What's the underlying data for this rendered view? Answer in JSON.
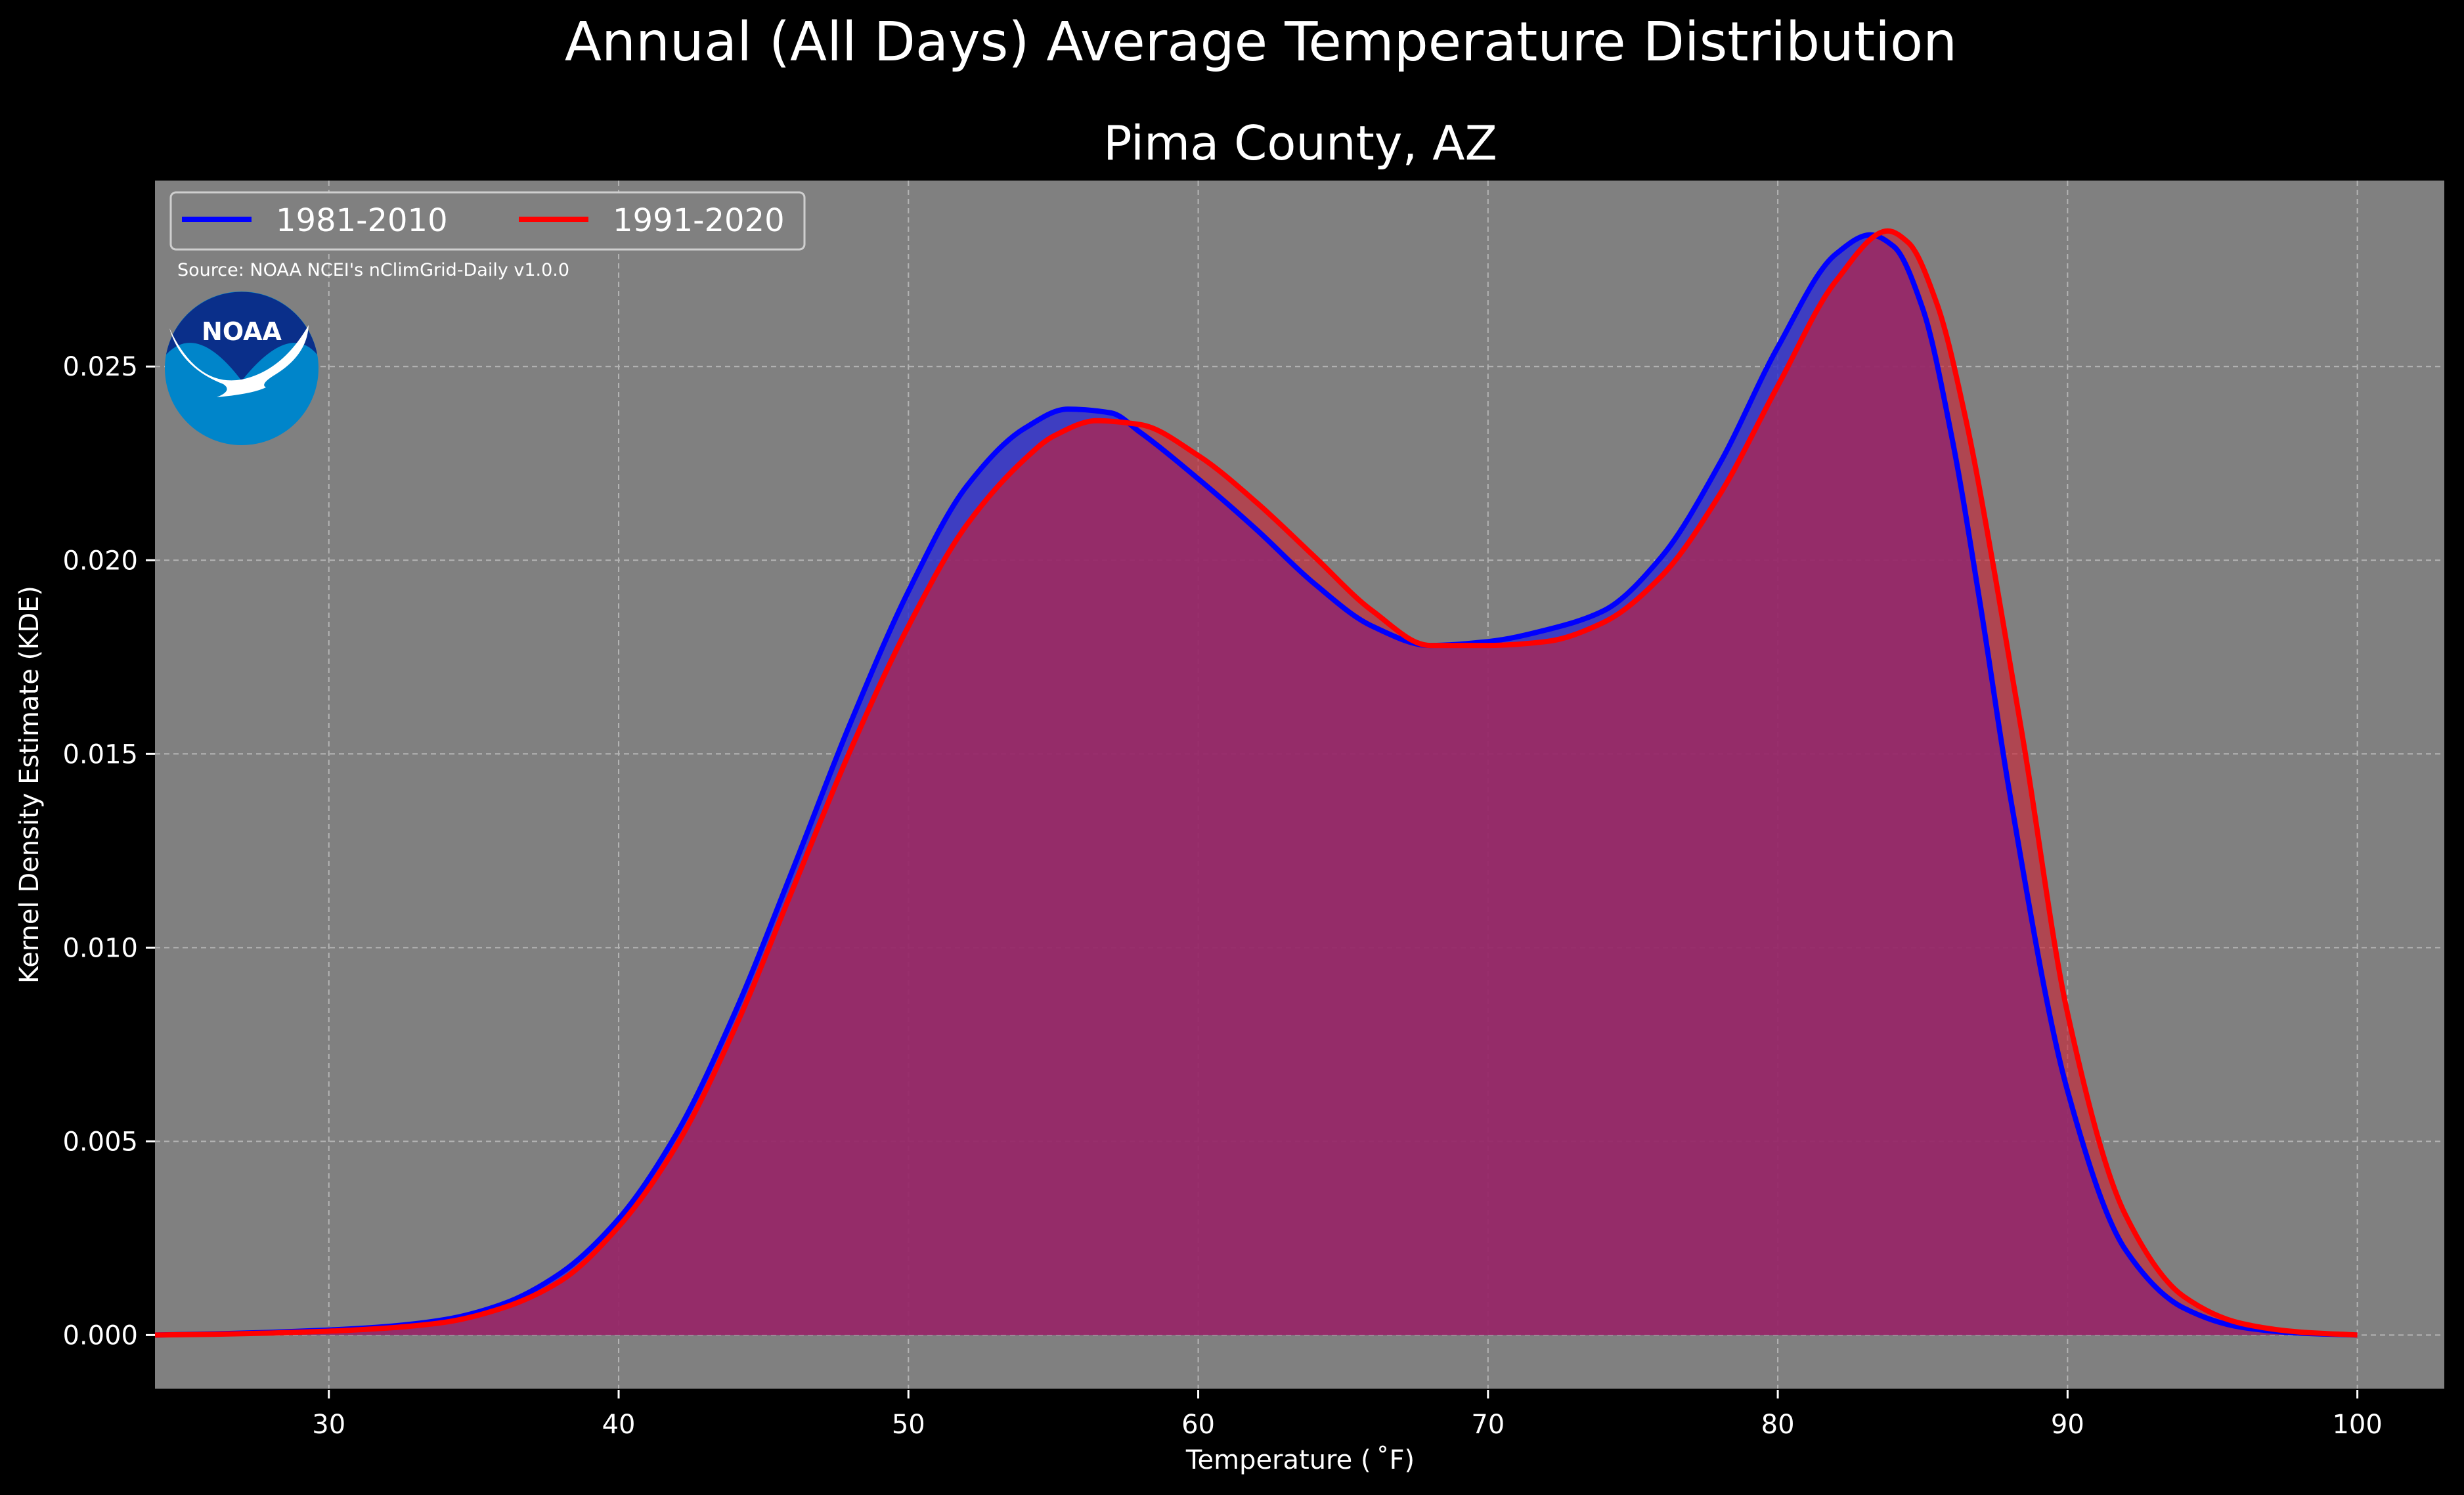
{
  "suptitle": "Annual (All Days) Average Temperature Distribution",
  "title": "Pima County, AZ",
  "source_note": "Source: NOAA NCEI's nClimGrid-Daily v1.0.0",
  "logo_text": "NOAA",
  "colors": {
    "background": "#000000",
    "plot_bg": "#808080",
    "series_1981": "#0000ff",
    "series_1991": "#ff0000",
    "fill_1981": "#3333cc",
    "fill_1991": "#cc2233",
    "overlap_fill": "#9b1f5c",
    "logo_dark": "#0a2f8a",
    "logo_light": "#0085ca"
  },
  "chart_data": {
    "type": "area",
    "xlabel": "Temperature ($^\\circ$F)",
    "ylabel": "Kernel Density Estimate (KDE)",
    "xlim": [
      24,
      103
    ],
    "ylim": [
      -0.0014,
      0.0298
    ],
    "xticks": [
      30,
      40,
      50,
      60,
      70,
      80,
      90,
      100
    ],
    "yticks": [
      0.0,
      0.005,
      0.01,
      0.015,
      0.02,
      0.025
    ],
    "xtick_labels": [
      "30",
      "40",
      "50",
      "60",
      "70",
      "80",
      "90",
      "100"
    ],
    "ytick_labels": [
      "0.000",
      "0.005",
      "0.010",
      "0.015",
      "0.020",
      "0.025"
    ],
    "grid": true,
    "legend": {
      "placement": "top-left",
      "ncol": 2
    },
    "series": [
      {
        "name": "1981-2010",
        "color": "#0000ff",
        "x": [
          24,
          26,
          28,
          30,
          32,
          34,
          36,
          38,
          40,
          42,
          44,
          46,
          48,
          50,
          52,
          54,
          55.5,
          57,
          58,
          60,
          62,
          64,
          66,
          68,
          70,
          72,
          74,
          76,
          78,
          80,
          82,
          83.2,
          84,
          85,
          86,
          87,
          88,
          90,
          92,
          94,
          96,
          98,
          100
        ],
        "y": [
          0.0,
          3e-05,
          7e-05,
          0.00013,
          0.00022,
          0.0004,
          0.0008,
          0.0016,
          0.003,
          0.0052,
          0.0083,
          0.012,
          0.0158,
          0.0192,
          0.0219,
          0.0234,
          0.0239,
          0.0238,
          0.0233,
          0.0221,
          0.0208,
          0.0194,
          0.0183,
          0.0178,
          0.0179,
          0.0182,
          0.0187,
          0.0201,
          0.0225,
          0.0255,
          0.0279,
          0.0284,
          0.0281,
          0.0265,
          0.0232,
          0.0188,
          0.014,
          0.0063,
          0.0022,
          0.0007,
          0.0002,
          5e-05,
          0.0
        ]
      },
      {
        "name": "1991-2020",
        "color": "#ff0000",
        "x": [
          24,
          26,
          28,
          30,
          32,
          34,
          36,
          38,
          40,
          42,
          44,
          46,
          48,
          50,
          52,
          54,
          55,
          56.5,
          58,
          60,
          62,
          64,
          66,
          68,
          70,
          72,
          74,
          76,
          78,
          80,
          82,
          83.8,
          84.5,
          85.5,
          86.5,
          87.5,
          88.5,
          90,
          92,
          94,
          96,
          98,
          100
        ],
        "y": [
          0.0,
          2e-05,
          5e-05,
          0.0001,
          0.00018,
          0.00033,
          0.0007,
          0.0014,
          0.0028,
          0.0049,
          0.0079,
          0.0115,
          0.0151,
          0.0183,
          0.0209,
          0.0226,
          0.0232,
          0.0236,
          0.0235,
          0.0227,
          0.0215,
          0.0201,
          0.0187,
          0.0178,
          0.0178,
          0.0179,
          0.0184,
          0.0196,
          0.0217,
          0.0245,
          0.0272,
          0.0285,
          0.0282,
          0.0266,
          0.0236,
          0.0196,
          0.0152,
          0.0083,
          0.0031,
          0.001,
          0.0003,
          8e-05,
          0.0
        ]
      }
    ]
  }
}
